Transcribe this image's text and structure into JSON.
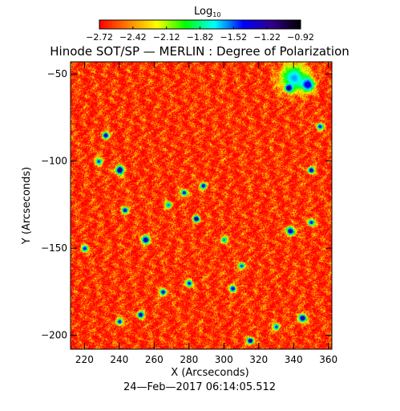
{
  "chart_data": {
    "type": "heatmap",
    "title": "Hinode SOT/SP — MERLIN : Degree of Polarization",
    "subtitle": "24—Feb—2017 06:14:05.512",
    "xlabel": "X (Arcseconds)",
    "ylabel": "Y (Arcseconds)",
    "xlim": [
      212,
      362
    ],
    "ylim": [
      -208,
      -43
    ],
    "x_ticks": [
      220,
      240,
      260,
      280,
      300,
      320,
      340,
      360
    ],
    "y_ticks": [
      -50,
      -100,
      -150,
      -200
    ],
    "grid": false,
    "colorbar": {
      "label": "Log",
      "label_sub": "10",
      "placement": "top",
      "range": [
        -2.72,
        -0.92
      ],
      "ticks": [
        "−2.72",
        "−2.42",
        "−2.12",
        "−1.82",
        "−1.52",
        "−1.22",
        "−0.92"
      ],
      "colormap": [
        "#ff0000",
        "#ff8000",
        "#ffff00",
        "#00ff00",
        "#00ffff",
        "#0000ff",
        "#30008a",
        "#000000"
      ]
    },
    "background_value": -2.65,
    "features": [
      {
        "x": 340,
        "y": -52,
        "value": -1.6,
        "extent": 8
      },
      {
        "x": 348,
        "y": -56,
        "value": -1.3,
        "extent": 4
      },
      {
        "x": 337,
        "y": -58,
        "value": -1.0,
        "extent": 2
      },
      {
        "x": 232,
        "y": -85,
        "value": -1.1,
        "extent": 2
      },
      {
        "x": 240,
        "y": -105,
        "value": -1.0,
        "extent": 2.5
      },
      {
        "x": 228,
        "y": -100,
        "value": -1.4,
        "extent": 2
      },
      {
        "x": 243,
        "y": -128,
        "value": -1.2,
        "extent": 2
      },
      {
        "x": 288,
        "y": -114,
        "value": -1.2,
        "extent": 2
      },
      {
        "x": 277,
        "y": -118,
        "value": -1.3,
        "extent": 2
      },
      {
        "x": 284,
        "y": -133,
        "value": -1.0,
        "extent": 2
      },
      {
        "x": 255,
        "y": -145,
        "value": -1.1,
        "extent": 2.5
      },
      {
        "x": 220,
        "y": -150,
        "value": -1.3,
        "extent": 2
      },
      {
        "x": 338,
        "y": -140,
        "value": -1.1,
        "extent": 2.5
      },
      {
        "x": 350,
        "y": -135,
        "value": -1.3,
        "extent": 2
      },
      {
        "x": 300,
        "y": -145,
        "value": -1.5,
        "extent": 2
      },
      {
        "x": 265,
        "y": -175,
        "value": -1.2,
        "extent": 2
      },
      {
        "x": 280,
        "y": -170,
        "value": -1.3,
        "extent": 2
      },
      {
        "x": 305,
        "y": -173,
        "value": -1.2,
        "extent": 2
      },
      {
        "x": 252,
        "y": -188,
        "value": -1.1,
        "extent": 2
      },
      {
        "x": 240,
        "y": -192,
        "value": -1.3,
        "extent": 2
      },
      {
        "x": 345,
        "y": -190,
        "value": -1.1,
        "extent": 2.5
      },
      {
        "x": 315,
        "y": -203,
        "value": -1.0,
        "extent": 2
      },
      {
        "x": 330,
        "y": -195,
        "value": -1.4,
        "extent": 2
      },
      {
        "x": 355,
        "y": -80,
        "value": -1.3,
        "extent": 2
      },
      {
        "x": 310,
        "y": -160,
        "value": -1.4,
        "extent": 2
      },
      {
        "x": 268,
        "y": -125,
        "value": -1.5,
        "extent": 2
      },
      {
        "x": 350,
        "y": -105,
        "value": -1.1,
        "extent": 2
      }
    ]
  }
}
